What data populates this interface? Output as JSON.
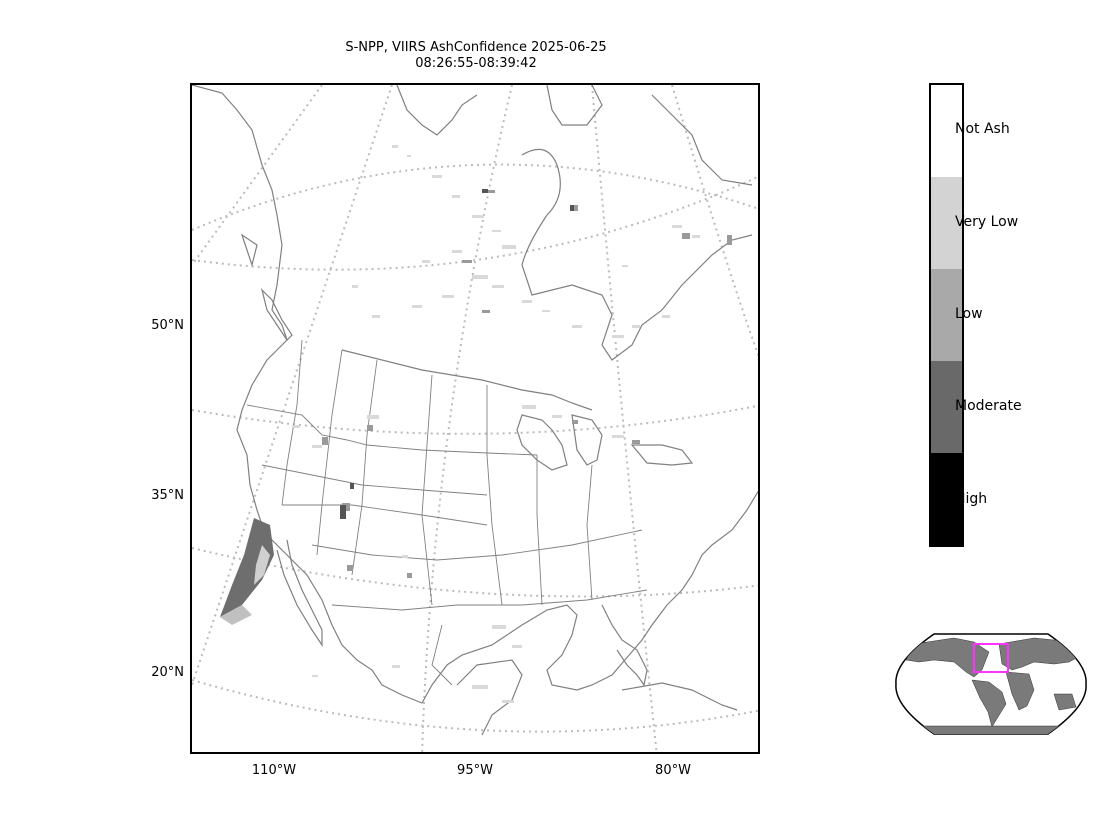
{
  "title": {
    "line1": "S-NPP, VIIRS AshConfidence 2025-06-25",
    "line2": "08:26:55-08:39:42"
  },
  "lat_labels": [
    "50°N",
    "35°N",
    "20°N"
  ],
  "lon_labels": [
    "110°W",
    "95°W",
    "80°W"
  ],
  "colorbar": {
    "categories": [
      "Not Ash",
      "Very Low",
      "Low",
      "Moderate",
      "High"
    ],
    "colors": [
      "#ffffff",
      "#d3d3d3",
      "#a9a9a9",
      "#696969",
      "#000000"
    ]
  },
  "inset": {
    "description_icon": "globe-locator-icon",
    "highlight_color": "#ff33ff"
  },
  "colors": {
    "coastline": "#808080",
    "gridline": "#bbbbbb",
    "ash_moderate": "#6e6e6e"
  }
}
